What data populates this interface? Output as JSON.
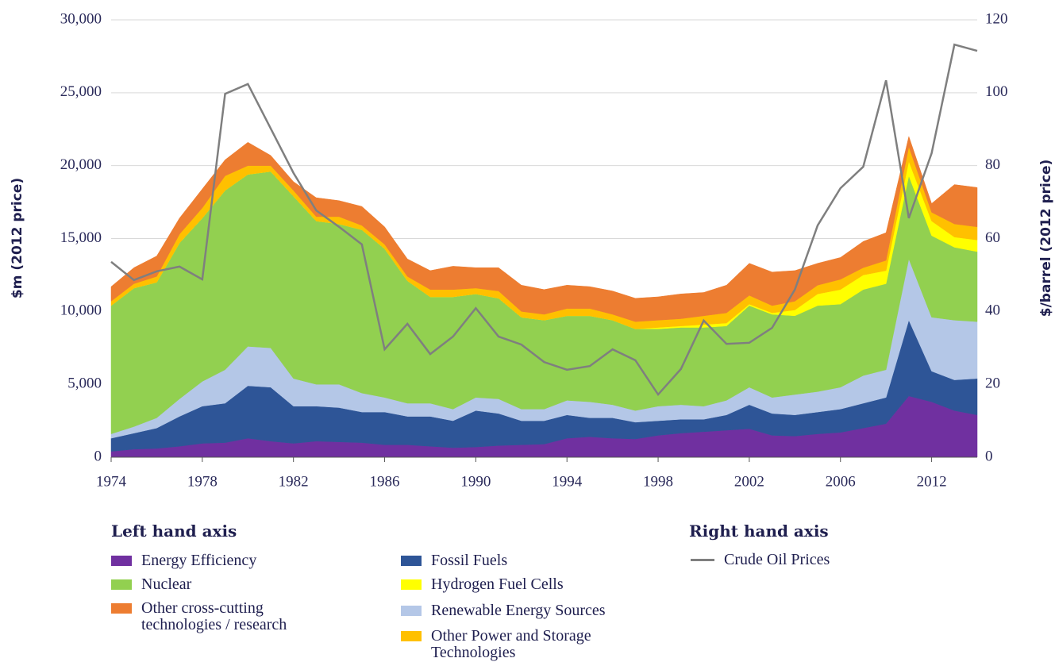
{
  "chart_data": {
    "type": "stacked_area",
    "y_label": "$m (2012 price)",
    "y2_label": "$/barrel (2012 price)",
    "legend_left_title": "Left hand axis",
    "legend_right_title": "Right hand axis",
    "categories": [
      "1974",
      null,
      null,
      null,
      "1978",
      null,
      null,
      null,
      "1982",
      null,
      null,
      null,
      "1986",
      null,
      null,
      null,
      "1990",
      null,
      null,
      null,
      "1994",
      null,
      null,
      null,
      "1998",
      null,
      null,
      null,
      "2002",
      null,
      null,
      null,
      "2006",
      null,
      null,
      null,
      "2012",
      null,
      null
    ],
    "ylim": [
      0,
      30000
    ],
    "yticks": [
      0,
      {
        "value": 5000,
        "label": "5,000"
      },
      {
        "value": 10000,
        "label": "10,000"
      },
      {
        "value": 15000,
        "label": "15,000"
      },
      {
        "value": 20000,
        "label": "20,000"
      },
      {
        "value": 25000,
        "label": "25,000"
      },
      {
        "value": 30000,
        "label": "30,000"
      }
    ],
    "y2lim": [
      0,
      120
    ],
    "y2ticks": [
      0,
      20,
      40,
      60,
      80,
      100,
      120
    ],
    "grid": true,
    "series": [
      {
        "name": "Energy Efficiency",
        "color": "#7030a0",
        "values": [
          400,
          550,
          600,
          750,
          950,
          1000,
          1300,
          1100,
          950,
          1100,
          1050,
          1000,
          850,
          850,
          750,
          650,
          700,
          800,
          850,
          900,
          1300,
          1400,
          1300,
          1250,
          1500,
          1650,
          1750,
          1850,
          1950,
          1500,
          1450,
          1600,
          1700,
          2000,
          2300,
          4200,
          3800,
          3200,
          2900
        ]
      },
      {
        "name": "Fossil Fuels",
        "color": "#2e5597",
        "values": [
          900,
          1100,
          1400,
          2050,
          2550,
          2700,
          3600,
          3700,
          2550,
          2400,
          2350,
          2100,
          2250,
          1950,
          2050,
          1850,
          2500,
          2200,
          1650,
          1600,
          1600,
          1300,
          1400,
          1150,
          1000,
          950,
          850,
          1050,
          1650,
          1500,
          1450,
          1500,
          1600,
          1700,
          1800,
          5200,
          2100,
          2100,
          2500
        ]
      },
      {
        "name": "Renewable Energy Sources",
        "color": "#b4c7e7",
        "values": [
          300,
          450,
          700,
          1200,
          1700,
          2300,
          2700,
          2700,
          1900,
          1500,
          1600,
          1300,
          1000,
          900,
          900,
          800,
          900,
          1000,
          800,
          800,
          1000,
          1100,
          900,
          800,
          1000,
          1000,
          900,
          1000,
          1200,
          1100,
          1400,
          1400,
          1500,
          1900,
          1900,
          4200,
          3700,
          4100,
          3900
        ]
      },
      {
        "name": "Nuclear",
        "color": "#92d050",
        "values": [
          8800,
          9500,
          9300,
          10700,
          11200,
          12300,
          11800,
          12100,
          12500,
          11200,
          11000,
          11200,
          10200,
          8400,
          7300,
          7700,
          7100,
          6900,
          6300,
          6100,
          5800,
          5900,
          5800,
          5600,
          5300,
          5300,
          5400,
          5100,
          5600,
          5700,
          5400,
          5900,
          5700,
          5900,
          5900,
          5700,
          5600,
          5000,
          4800
        ]
      },
      {
        "name": "Hydrogen Fuel Cells",
        "color": "#ffff00",
        "values": [
          0,
          0,
          0,
          0,
          0,
          0,
          0,
          0,
          0,
          0,
          0,
          0,
          0,
          0,
          0,
          0,
          0,
          0,
          0,
          0,
          0,
          0,
          0,
          0,
          100,
          100,
          200,
          200,
          100,
          100,
          400,
          800,
          1000,
          1000,
          900,
          1000,
          1000,
          700,
          800
        ]
      },
      {
        "name": "Other Power and Storage Technologies",
        "color": "#ffc000",
        "values": [
          300,
          300,
          400,
          600,
          700,
          1000,
          600,
          400,
          400,
          300,
          500,
          300,
          300,
          300,
          500,
          500,
          400,
          500,
          400,
          400,
          500,
          500,
          400,
          500,
          500,
          500,
          600,
          700,
          600,
          500,
          600,
          600,
          700,
          500,
          700,
          1000,
          600,
          900,
          900
        ]
      },
      {
        "name": "Other cross-cutting technologies / research",
        "color": "#ed7d31",
        "values": [
          1000,
          1100,
          1400,
          1100,
          1300,
          1100,
          1600,
          700,
          600,
          1300,
          1100,
          1300,
          1200,
          1200,
          1300,
          1600,
          1400,
          1600,
          1800,
          1700,
          1600,
          1500,
          1600,
          1600,
          1600,
          1700,
          1600,
          1900,
          2200,
          2300,
          2100,
          1500,
          1500,
          1800,
          1900,
          700,
          600,
          2700,
          2700
        ]
      },
      {
        "name": "Crude Oil Prices",
        "color": "#7f7f7f",
        "axis": "y2",
        "type": "line",
        "values": [
          53.6,
          48.6,
          51,
          52.3,
          48.8,
          99.7,
          102.4,
          90.2,
          78,
          67.7,
          63.2,
          58.4,
          29.6,
          36.6,
          28.3,
          33.1,
          40.9,
          33.1,
          30.9,
          26.1,
          24,
          25,
          29.6,
          26.6,
          17.2,
          24.2,
          37.5,
          31.1,
          31.4,
          35.5,
          46,
          63.6,
          73.8,
          79.7,
          103.4,
          65.6,
          83.4,
          113.2,
          111.5
        ]
      }
    ]
  }
}
